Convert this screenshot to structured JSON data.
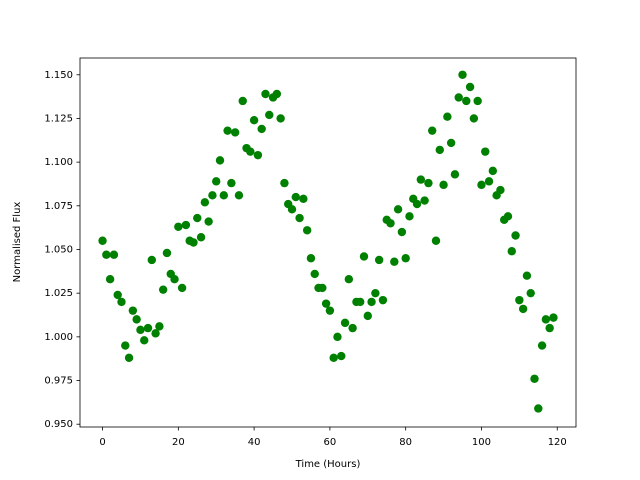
{
  "chart_data": {
    "type": "scatter",
    "x_label": "Time (Hours)",
    "y_label": "Normalised Flux",
    "xlim": [
      -5.95,
      124.95
    ],
    "ylim": [
      0.9484,
      1.1596
    ],
    "xticks": [
      0,
      20,
      40,
      60,
      80,
      100,
      120
    ],
    "yticks": [
      {
        "value": 0.95,
        "label": "0.950"
      },
      {
        "value": 0.975,
        "label": "0.975"
      },
      {
        "value": 1.0,
        "label": "1.000"
      },
      {
        "value": 1.025,
        "label": "1.025"
      },
      {
        "value": 1.05,
        "label": "1.050"
      },
      {
        "value": 1.075,
        "label": "1.075"
      },
      {
        "value": 1.1,
        "label": "1.100"
      },
      {
        "value": 1.125,
        "label": "1.125"
      },
      {
        "value": 1.15,
        "label": "1.150"
      }
    ],
    "color": "#008000",
    "x": [
      0,
      1,
      2,
      3,
      4,
      5,
      6,
      7,
      8,
      9,
      10,
      11,
      12,
      13,
      14,
      15,
      16,
      17,
      18,
      19,
      20,
      21,
      22,
      23,
      24,
      25,
      26,
      27,
      28,
      29,
      30,
      31,
      32,
      33,
      34,
      35,
      36,
      37,
      38,
      39,
      40,
      41,
      42,
      43,
      44,
      45,
      46,
      47,
      48,
      49,
      50,
      51,
      52,
      53,
      54,
      55,
      56,
      57,
      58,
      59,
      60,
      61,
      62,
      63,
      64,
      65,
      66,
      67,
      68,
      69,
      70,
      71,
      72,
      73,
      74,
      75,
      76,
      77,
      78,
      79,
      80,
      81,
      82,
      83,
      84,
      85,
      86,
      87,
      88,
      89,
      90,
      91,
      92,
      93,
      94,
      95,
      96,
      97,
      98,
      99,
      100,
      101,
      102,
      103,
      104,
      105,
      106,
      107,
      108,
      109,
      110,
      111,
      112,
      113,
      114,
      115,
      116,
      117,
      118,
      119
    ],
    "values": [
      1.055,
      1.047,
      1.033,
      1.047,
      1.024,
      1.02,
      0.995,
      0.988,
      1.015,
      1.01,
      1.004,
      0.998,
      1.005,
      1.044,
      1.002,
      1.006,
      1.027,
      1.048,
      1.036,
      1.033,
      1.063,
      1.028,
      1.064,
      1.055,
      1.054,
      1.068,
      1.057,
      1.077,
      1.066,
      1.081,
      1.089,
      1.101,
      1.081,
      1.118,
      1.088,
      1.117,
      1.081,
      1.135,
      1.108,
      1.106,
      1.124,
      1.104,
      1.119,
      1.139,
      1.127,
      1.137,
      1.139,
      1.125,
      1.088,
      1.076,
      1.073,
      1.08,
      1.068,
      1.079,
      1.061,
      1.045,
      1.036,
      1.028,
      1.028,
      1.019,
      1.015,
      0.988,
      1.0,
      0.989,
      1.008,
      1.033,
      1.005,
      1.02,
      1.02,
      1.046,
      1.012,
      1.02,
      1.025,
      1.044,
      1.021,
      1.067,
      1.065,
      1.043,
      1.073,
      1.06,
      1.045,
      1.069,
      1.079,
      1.076,
      1.09,
      1.078,
      1.088,
      1.118,
      1.055,
      1.107,
      1.087,
      1.126,
      1.111,
      1.093,
      1.137,
      1.15,
      1.135,
      1.143,
      1.125,
      1.135,
      1.087,
      1.106,
      1.089,
      1.095,
      1.081,
      1.084,
      1.067,
      1.069,
      1.049,
      1.058,
      1.021,
      1.016,
      1.035,
      1.025,
      0.976,
      0.959,
      0.995,
      1.01,
      1.005,
      1.011
    ]
  }
}
